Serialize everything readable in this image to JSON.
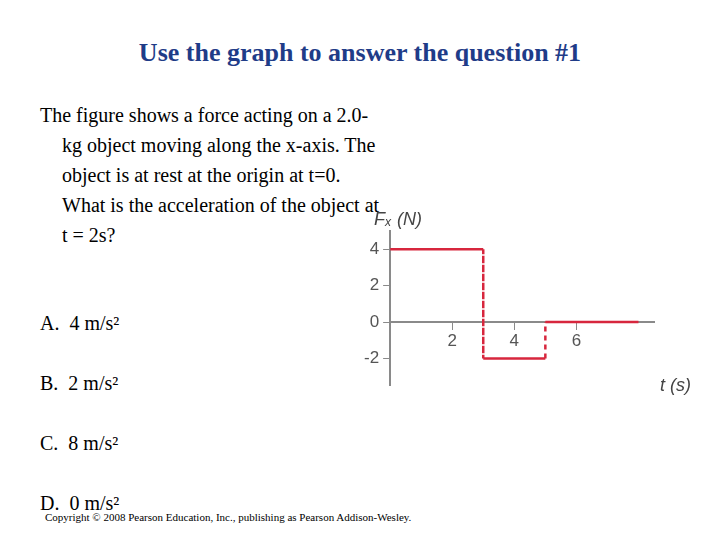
{
  "title": "Use the graph to answer the question #1",
  "question": "The figure shows a force acting on a 2.0-kg object moving along the x-axis. The object is at rest at the origin at t=0. What is the acceleration of the object at t = 2s?",
  "options": [
    {
      "letter": "A.",
      "text": "4 m/s²"
    },
    {
      "letter": "B.",
      "text": "2 m/s²"
    },
    {
      "letter": "C.",
      "text": "8 m/s²"
    },
    {
      "letter": "D.",
      "text": "0 m/s²"
    }
  ],
  "copyright": "Copyright © 2008 Pearson Education, Inc., publishing as Pearson Addison-Wesley.",
  "chart_data": {
    "type": "line",
    "x": [
      0,
      3,
      3,
      5,
      5,
      8
    ],
    "values": [
      4,
      4,
      -2,
      -2,
      0,
      0
    ],
    "color": "#d7263d",
    "xlabel": "t (s)",
    "ylabel": "Fₓ (N)",
    "xlim": [
      0,
      8.5
    ],
    "ylim": [
      -3.5,
      5
    ],
    "xticks": [
      2,
      4,
      6
    ],
    "yticks": [
      -2,
      0,
      2,
      4
    ],
    "grid": false
  }
}
